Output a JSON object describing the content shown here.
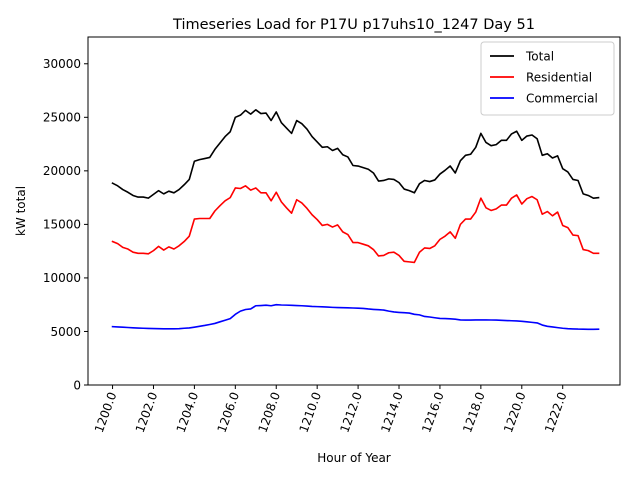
{
  "chart_data": {
    "type": "line",
    "title": "Timeseries Load for P17U p17uhs10_1247  Day 51",
    "xlabel": "Hour of Year",
    "ylabel": "kW total",
    "xlim": [
      1198.8,
      1224.8
    ],
    "ylim": [
      0,
      32500
    ],
    "xticks": [
      1200,
      1202,
      1204,
      1206,
      1208,
      1210,
      1212,
      1214,
      1216,
      1218,
      1220,
      1222
    ],
    "xtick_labels": [
      "1200.0",
      "1202.0",
      "1204.0",
      "1206.0",
      "1208.0",
      "1210.0",
      "1212.0",
      "1214.0",
      "1216.0",
      "1218.0",
      "1220.0",
      "1222.0"
    ],
    "yticks": [
      0,
      5000,
      10000,
      15000,
      20000,
      25000,
      30000
    ],
    "ytick_labels": [
      "0",
      "5000",
      "10000",
      "15000",
      "20000",
      "25000",
      "30000"
    ],
    "legend_position": "top-right",
    "x_start": 1200,
    "x_step": 0.25,
    "series": [
      {
        "name": "Total",
        "color": "#000000",
        "values": [
          18850,
          18600,
          18250,
          18000,
          17700,
          17550,
          17550,
          17450,
          17800,
          18150,
          17850,
          18100,
          17950,
          18250,
          18700,
          19200,
          20900,
          21050,
          21150,
          21250,
          22000,
          22600,
          23200,
          23650,
          25000,
          25200,
          25650,
          25300,
          25700,
          25350,
          25400,
          24700,
          25500,
          24500,
          24000,
          23500,
          24700,
          24400,
          23900,
          23200,
          22700,
          22200,
          22250,
          21900,
          22100,
          21500,
          21300,
          20500,
          20450,
          20300,
          20150,
          19800,
          19050,
          19100,
          19250,
          19200,
          18900,
          18300,
          18150,
          17950,
          18800,
          19100,
          19000,
          19150,
          19700,
          20050,
          20450,
          19800,
          20950,
          21450,
          21550,
          22200,
          23500,
          22650,
          22350,
          22450,
          22850,
          22850,
          23450,
          23700,
          22850,
          23250,
          23350,
          23000,
          21450,
          21600,
          21200,
          21400,
          20200,
          19900,
          19200,
          19100,
          17850,
          17700,
          17450,
          17500
        ]
      },
      {
        "name": "Residential",
        "color": "#ff0000",
        "values": [
          13400,
          13200,
          12850,
          12700,
          12400,
          12300,
          12300,
          12250,
          12550,
          12950,
          12600,
          12900,
          12700,
          13000,
          13400,
          13900,
          15500,
          15550,
          15550,
          15550,
          16250,
          16750,
          17200,
          17500,
          18400,
          18350,
          18600,
          18200,
          18400,
          17950,
          17950,
          17200,
          18000,
          17100,
          16550,
          16050,
          17300,
          17000,
          16500,
          15900,
          15450,
          14900,
          15000,
          14750,
          14950,
          14300,
          14050,
          13300,
          13300,
          13150,
          13000,
          12650,
          12050,
          12100,
          12350,
          12400,
          12100,
          11550,
          11500,
          11450,
          12400,
          12800,
          12750,
          13000,
          13600,
          13900,
          14300,
          13700,
          15000,
          15500,
          15500,
          16150,
          17450,
          16550,
          16300,
          16450,
          16800,
          16800,
          17450,
          17750,
          16900,
          17400,
          17600,
          17300,
          15950,
          16200,
          15800,
          16150,
          14900,
          14700,
          14000,
          13950,
          12650,
          12550,
          12300,
          12300
        ]
      },
      {
        "name": "Commercial",
        "color": "#0000ff",
        "values": [
          5450,
          5420,
          5400,
          5370,
          5340,
          5320,
          5300,
          5280,
          5270,
          5260,
          5250,
          5250,
          5250,
          5260,
          5300,
          5330,
          5400,
          5480,
          5560,
          5650,
          5750,
          5900,
          6050,
          6200,
          6600,
          6900,
          7050,
          7100,
          7400,
          7420,
          7450,
          7400,
          7500,
          7470,
          7460,
          7440,
          7420,
          7400,
          7370,
          7340,
          7320,
          7300,
          7280,
          7250,
          7230,
          7220,
          7210,
          7190,
          7170,
          7150,
          7100,
          7060,
          7030,
          7000,
          6900,
          6820,
          6780,
          6750,
          6720,
          6600,
          6550,
          6400,
          6350,
          6280,
          6220,
          6200,
          6180,
          6150,
          6080,
          6060,
          6060,
          6080,
          6080,
          6080,
          6070,
          6060,
          6040,
          6020,
          6000,
          5980,
          5950,
          5900,
          5850,
          5800,
          5600,
          5480,
          5420,
          5360,
          5300,
          5260,
          5240,
          5220,
          5210,
          5200,
          5200,
          5210
        ]
      }
    ]
  }
}
